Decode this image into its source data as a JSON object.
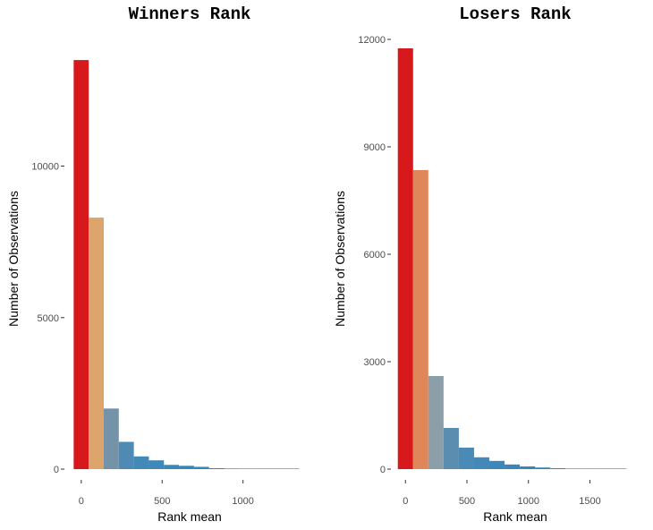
{
  "chart_data": [
    {
      "type": "bar",
      "title": "Winners Rank",
      "xlabel": "Rank mean",
      "ylabel": "Number of Observations",
      "grid": false,
      "legend": "none",
      "xlim": [
        -60,
        1400
      ],
      "ylim": [
        0,
        14300
      ],
      "x_ticks": [
        0,
        500,
        1000
      ],
      "y_ticks": [
        0,
        5000,
        10000
      ],
      "bin_width": 93,
      "bins": [
        {
          "x0": -47,
          "x1": 46,
          "value": 13500,
          "color": "#d7191c"
        },
        {
          "x0": 46,
          "x1": 139,
          "value": 8300,
          "color": "#dba56b"
        },
        {
          "x0": 139,
          "x1": 232,
          "value": 2000,
          "color": "#7593a8"
        },
        {
          "x0": 232,
          "x1": 325,
          "value": 900,
          "color": "#4f8ab5"
        },
        {
          "x0": 325,
          "x1": 418,
          "value": 420,
          "color": "#4389b8"
        },
        {
          "x0": 418,
          "x1": 511,
          "value": 290,
          "color": "#3f88ba"
        },
        {
          "x0": 511,
          "x1": 604,
          "value": 140,
          "color": "#3a87bb"
        },
        {
          "x0": 604,
          "x1": 697,
          "value": 110,
          "color": "#3786bb"
        },
        {
          "x0": 697,
          "x1": 790,
          "value": 75,
          "color": "#3386bc"
        },
        {
          "x0": 790,
          "x1": 883,
          "value": 30,
          "color": "#3185bc"
        },
        {
          "x0": 883,
          "x1": 976,
          "value": 20,
          "color": "#2f85bc"
        },
        {
          "x0": 976,
          "x1": 1069,
          "value": 14,
          "color": "#2e85bc"
        },
        {
          "x0": 1069,
          "x1": 1162,
          "value": 10,
          "color": "#2d84bc"
        },
        {
          "x0": 1162,
          "x1": 1255,
          "value": 7,
          "color": "#2c84bc"
        },
        {
          "x0": 1255,
          "x1": 1348,
          "value": 5,
          "color": "#2b84bc"
        }
      ]
    },
    {
      "type": "bar",
      "title": "Losers Rank",
      "xlabel": "Rank mean",
      "ylabel": "Number of Observations",
      "grid": false,
      "legend": "none",
      "xlim": [
        -60,
        1860
      ],
      "ylim": [
        0,
        12100
      ],
      "x_ticks": [
        0,
        500,
        1000,
        1500
      ],
      "y_ticks": [
        0,
        3000,
        6000,
        9000,
        12000
      ],
      "bin_width": 124,
      "bins": [
        {
          "x0": -62,
          "x1": 62,
          "value": 11750,
          "color": "#d7191c"
        },
        {
          "x0": 62,
          "x1": 186,
          "value": 8350,
          "color": "#e0875a"
        },
        {
          "x0": 186,
          "x1": 310,
          "value": 2600,
          "color": "#8c9fa8"
        },
        {
          "x0": 310,
          "x1": 434,
          "value": 1150,
          "color": "#5b8db1"
        },
        {
          "x0": 434,
          "x1": 558,
          "value": 600,
          "color": "#4a8ab6"
        },
        {
          "x0": 558,
          "x1": 682,
          "value": 330,
          "color": "#4288b9"
        },
        {
          "x0": 682,
          "x1": 806,
          "value": 230,
          "color": "#3d87ba"
        },
        {
          "x0": 806,
          "x1": 930,
          "value": 130,
          "color": "#3986bb"
        },
        {
          "x0": 930,
          "x1": 1054,
          "value": 75,
          "color": "#3586bb"
        },
        {
          "x0": 1054,
          "x1": 1178,
          "value": 45,
          "color": "#3285bc"
        },
        {
          "x0": 1178,
          "x1": 1302,
          "value": 25,
          "color": "#3085bc"
        },
        {
          "x0": 1302,
          "x1": 1426,
          "value": 15,
          "color": "#2f85bc"
        },
        {
          "x0": 1426,
          "x1": 1550,
          "value": 10,
          "color": "#2e85bc"
        },
        {
          "x0": 1550,
          "x1": 1674,
          "value": 7,
          "color": "#2d84bc"
        },
        {
          "x0": 1674,
          "x1": 1798,
          "value": 5,
          "color": "#2c84bc"
        }
      ]
    }
  ]
}
